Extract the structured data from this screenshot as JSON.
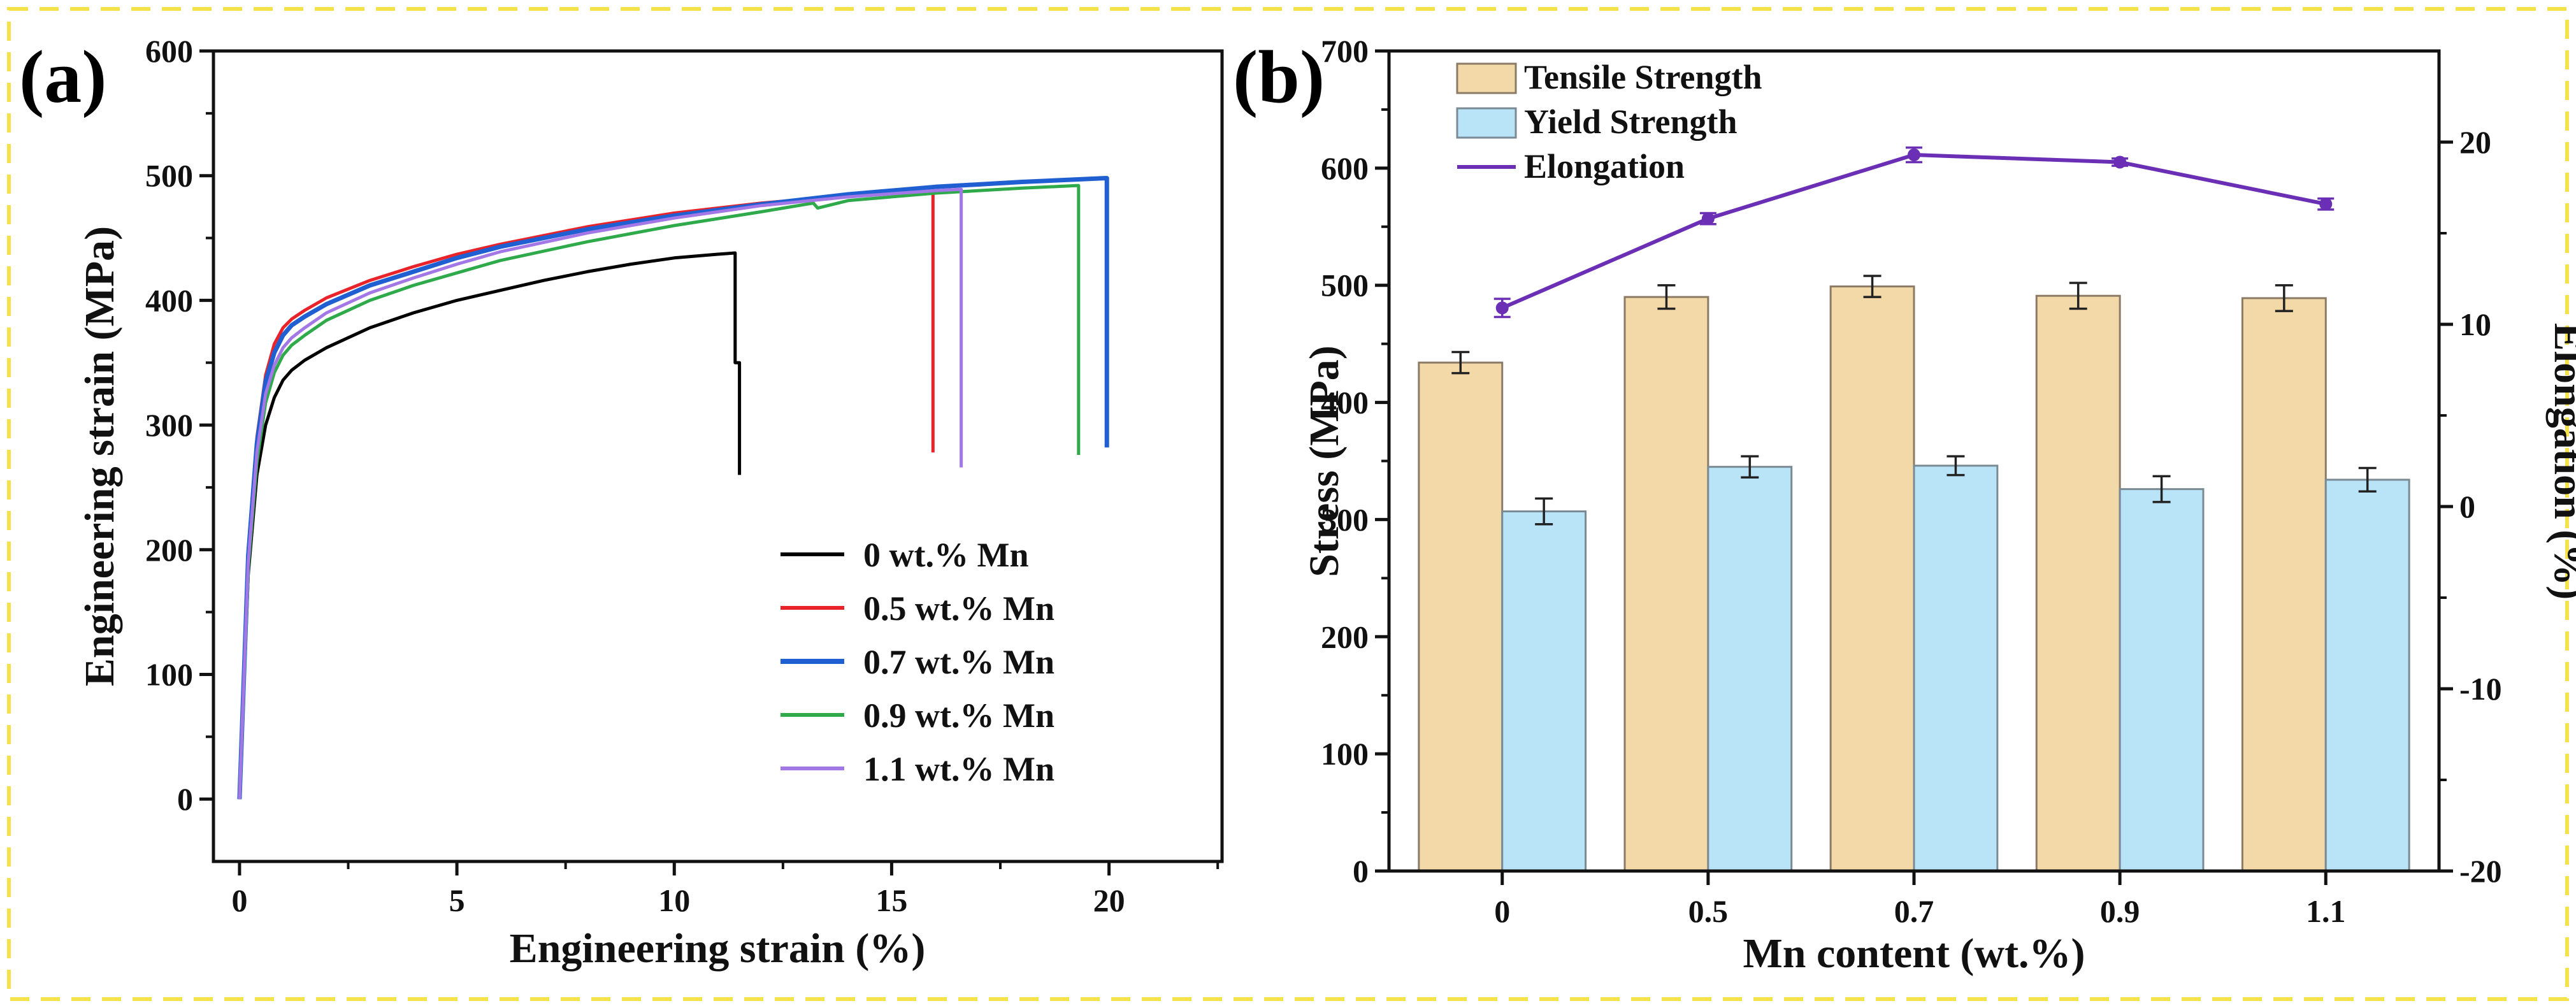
{
  "frame": {
    "border_color": "#f5e24a"
  },
  "chart_data": [
    {
      "id": "a",
      "panel_label": "(a)",
      "type": "line",
      "xlabel": "Engineering strain (%)",
      "ylabel": "Engineering strain (MPa)",
      "xlim": [
        -0.6,
        22.6
      ],
      "ylim": [
        -50,
        600
      ],
      "xticks": [
        0,
        5,
        10,
        15,
        20
      ],
      "yticks": [
        0,
        100,
        200,
        300,
        400,
        500,
        600
      ],
      "legend_position": "bottom-right",
      "series": [
        {
          "name": "0 wt.%  Mn",
          "color": "#000000",
          "x": [
            0,
            0.2,
            0.4,
            0.6,
            0.8,
            1.0,
            1.2,
            1.5,
            2,
            3,
            4,
            5,
            6,
            7,
            8,
            9,
            10,
            11,
            11.4,
            11.4,
            11.5,
            11.5
          ],
          "y": [
            0,
            180,
            260,
            300,
            322,
            336,
            344,
            352,
            362,
            378,
            390,
            400,
            408,
            416,
            423,
            429,
            434,
            437,
            438,
            350,
            350,
            260
          ]
        },
        {
          "name": "0.5 wt.% Mn",
          "color": "#e8232a",
          "x": [
            0,
            0.2,
            0.4,
            0.6,
            0.8,
            1.0,
            1.2,
            1.5,
            2,
            3,
            4,
            5,
            6,
            8,
            10,
            12,
            14,
            15.9,
            15.95,
            15.95
          ],
          "y": [
            0,
            200,
            290,
            340,
            365,
            378,
            385,
            392,
            402,
            416,
            427,
            437,
            445,
            459,
            470,
            478,
            484,
            487,
            487,
            278
          ]
        },
        {
          "name": "0.7 wt.% Mn",
          "color": "#1f5fd1",
          "x": [
            0,
            0.2,
            0.4,
            0.6,
            0.8,
            1.0,
            1.2,
            1.5,
            2,
            3,
            4,
            5,
            6,
            8,
            10,
            12,
            14,
            16,
            18,
            19.9,
            19.95,
            19.95
          ],
          "y": [
            0,
            195,
            285,
            335,
            358,
            372,
            380,
            387,
            397,
            412,
            423,
            434,
            443,
            457,
            468,
            477,
            485,
            491,
            495,
            498,
            498,
            282
          ]
        },
        {
          "name": "0.9 wt.% Mn",
          "color": "#2eaa4a",
          "x": [
            0,
            0.2,
            0.4,
            0.6,
            0.8,
            1.0,
            1.2,
            1.5,
            2,
            3,
            4,
            5,
            6,
            8,
            10,
            12,
            13.2,
            13.3,
            14,
            16,
            18,
            19.25,
            19.3,
            19.3
          ],
          "y": [
            0,
            185,
            270,
            318,
            342,
            356,
            364,
            372,
            384,
            400,
            412,
            422,
            432,
            447,
            460,
            471,
            478,
            474,
            480,
            486,
            490,
            492,
            492,
            276
          ]
        },
        {
          "name": "1.1 wt.% Mn",
          "color": "#a477e6",
          "x": [
            0,
            0.2,
            0.4,
            0.6,
            0.8,
            1.0,
            1.2,
            1.5,
            2,
            3,
            4,
            5,
            6,
            8,
            10,
            12,
            14,
            16,
            16.55,
            16.6,
            16.6
          ],
          "y": [
            0,
            190,
            278,
            325,
            348,
            362,
            370,
            378,
            390,
            406,
            418,
            429,
            439,
            454,
            466,
            476,
            483,
            488,
            489,
            489,
            266
          ]
        }
      ]
    },
    {
      "id": "b",
      "panel_label": "(b)",
      "type": "bar",
      "xlabel": "Mn content (wt.%)",
      "ylabel": "Stress (MPa)",
      "y2label": "Elongation (%)",
      "categories": [
        "0",
        "0.5",
        "0.7",
        "0.9",
        "1.1"
      ],
      "ylim": [
        0,
        700
      ],
      "yticks": [
        0,
        100,
        200,
        300,
        400,
        500,
        600,
        700
      ],
      "y2lim": [
        -20,
        25
      ],
      "y2ticks": [
        -20,
        -10,
        0,
        10,
        20
      ],
      "legend_position": "top-left",
      "series": [
        {
          "name": "Tensile Strength",
          "kind": "bar",
          "color": "#f4d9a8",
          "edge": "#8a7a66",
          "values": [
            434,
            490,
            499,
            491,
            489
          ],
          "errors": [
            9,
            10,
            9,
            11,
            11
          ]
        },
        {
          "name": "Yield Strength",
          "kind": "bar",
          "color": "#b9e3f7",
          "edge": "#7a8a94",
          "values": [
            307,
            345,
            346,
            326,
            334
          ],
          "errors": [
            11,
            9,
            8,
            11,
            10
          ]
        },
        {
          "name": "Elongation",
          "kind": "line",
          "axis": "y2",
          "color": "#6a2fb5",
          "values": [
            10.9,
            15.8,
            19.3,
            18.9,
            16.6
          ],
          "errors": [
            0.5,
            0.3,
            0.4,
            0.2,
            0.3
          ]
        }
      ]
    }
  ]
}
